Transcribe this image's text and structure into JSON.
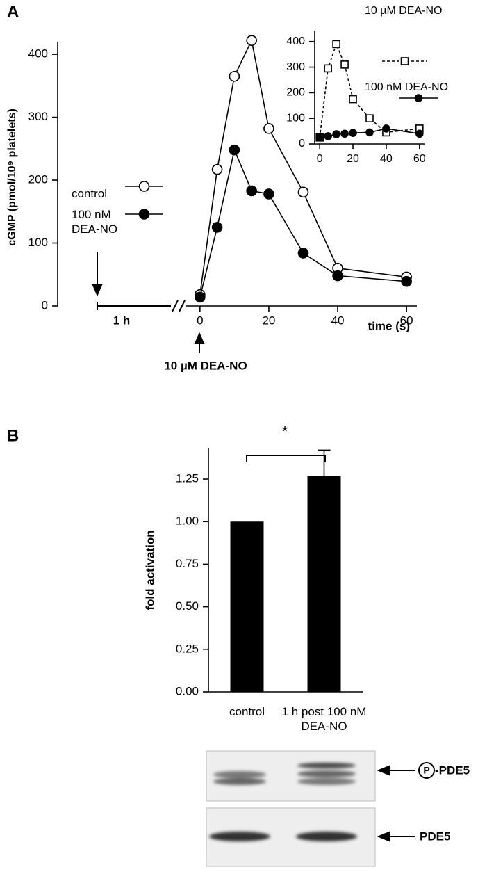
{
  "chart_data": [
    {
      "type": "line",
      "panel_label": "A",
      "ylabel": "cGMP (pmol/10⁹ platelets)",
      "xlabel": "time (s)",
      "annotations": [
        "1 h",
        "10 µM DEA-NO"
      ],
      "x": [
        0,
        5,
        10,
        15,
        20,
        30,
        40,
        60
      ],
      "series": [
        {
          "name": "control",
          "marker": "open-circle",
          "dashed": false,
          "color": "#000000",
          "values": [
            18,
            217,
            365,
            422,
            282,
            181,
            60,
            46
          ]
        },
        {
          "name": "100 nM DEA-NO",
          "marker": "filled-circle",
          "dashed": false,
          "color": "#000000",
          "values": [
            14,
            125,
            248,
            183,
            178,
            84,
            48,
            39
          ]
        }
      ],
      "xlim": [
        -4,
        63
      ],
      "ylim": [
        0,
        420
      ],
      "xticks": [
        0,
        20,
        40,
        60
      ],
      "yticks": [
        0,
        100,
        200,
        300,
        400
      ]
    },
    {
      "type": "line",
      "x": [
        0,
        5,
        10,
        15,
        20,
        30,
        40,
        60
      ],
      "series": [
        {
          "name": "10 µM DEA-NO",
          "marker": "open-square",
          "dashed": true,
          "color": "#000000",
          "values": [
            25,
            295,
            390,
            310,
            175,
            100,
            45,
            60
          ]
        },
        {
          "name": "100 nM DEA-NO",
          "marker": "filled-circle",
          "dashed": false,
          "color": "#000000",
          "values": [
            25,
            30,
            38,
            40,
            43,
            45,
            60,
            40
          ]
        }
      ],
      "xlim": [
        -3,
        63
      ],
      "ylim": [
        0,
        440
      ],
      "xticks": [
        0,
        20,
        40,
        60
      ],
      "yticks": [
        0,
        100,
        200,
        300,
        400
      ]
    },
    {
      "type": "bar",
      "panel_label": "B",
      "ylabel": "fold activation",
      "annotation": "*",
      "categories": [
        "control",
        "1 h post 100 nM DEA-NO"
      ],
      "values": [
        1.0,
        1.27
      ],
      "errors": [
        null,
        0.15
      ],
      "color": "#000000",
      "ylim": [
        0,
        1.43
      ],
      "yticks": [
        {
          "value": 0,
          "label": "0.00"
        },
        0.25,
        {
          "value": 0.5,
          "label": "0.50"
        },
        0.75,
        {
          "value": 1,
          "label": "1.00"
        },
        1.25
      ]
    }
  ],
  "blot": {
    "labels": [
      "P",
      "-PDE5",
      "PDE5"
    ]
  }
}
